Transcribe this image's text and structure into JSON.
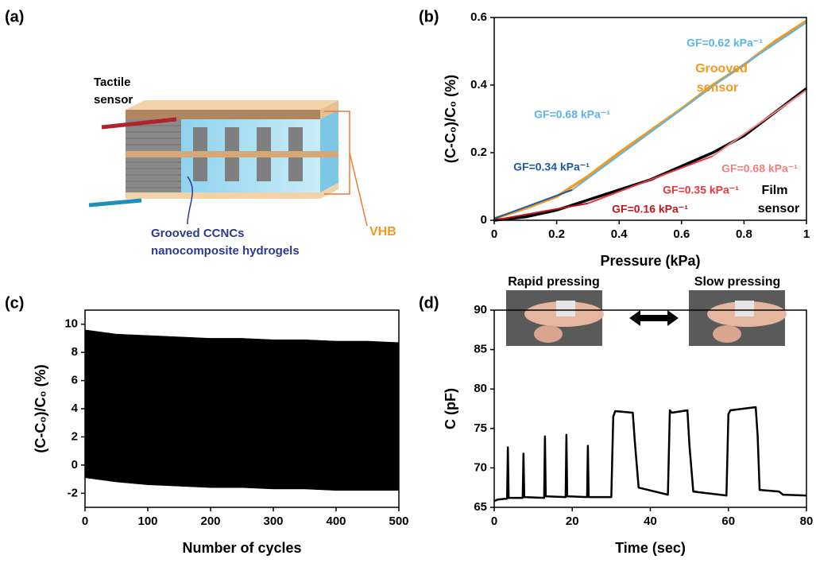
{
  "diagram": {
    "panel_label": "(a)",
    "sensor_label": [
      "Tactile",
      "sensor"
    ],
    "vhb_label": "VHB",
    "hydrogel_label": [
      "Grooved CCNCs",
      "nanocomposite hydrogels"
    ]
  },
  "chart_data": [
    {
      "type": "line",
      "panel_label": "(b)",
      "xlabel": "Pressure (kPa)",
      "ylabel": "(C-C₀)/C₀ (%)",
      "xlim": [
        0,
        1
      ],
      "ylim": [
        0,
        0.6
      ],
      "xticks": [
        0,
        0.2,
        0.4,
        0.6,
        0.8,
        1
      ],
      "yticks": [
        0,
        0.2,
        0.4,
        0.6
      ],
      "x": [
        0,
        0.1,
        0.2,
        0.3,
        0.4,
        0.5,
        0.6,
        0.7,
        0.8,
        0.9,
        1
      ],
      "series": [
        {
          "color": "#f39a1e",
          "values": [
            0.005,
            0.035,
            0.07,
            0.13,
            0.2,
            0.265,
            0.33,
            0.4,
            0.46,
            0.53,
            0.59
          ]
        },
        {
          "color": "#000000",
          "values": [
            0,
            0.01,
            0.03,
            0.06,
            0.09,
            0.12,
            0.16,
            0.2,
            0.25,
            0.32,
            0.39
          ]
        }
      ],
      "fits": [
        {
          "color": "#1a5aa8",
          "x": [
            0,
            0.25
          ],
          "values": [
            0.005,
            0.09
          ]
        },
        {
          "color": "#5bb5e8",
          "x": [
            0.25,
            0.75
          ],
          "values": [
            0.09,
            0.43
          ]
        },
        {
          "color": "#5bb5e8",
          "x": [
            0.75,
            1
          ],
          "values": [
            0.43,
            0.585
          ]
        },
        {
          "color": "#c0151b",
          "x": [
            0,
            0.3
          ],
          "values": [
            0,
            0.05
          ]
        },
        {
          "color": "#e8383a",
          "x": [
            0.3,
            0.7
          ],
          "values": [
            0.05,
            0.19
          ]
        },
        {
          "color": "#f08080",
          "x": [
            0.7,
            1
          ],
          "values": [
            0.19,
            0.385
          ]
        }
      ],
      "annotations": [
        {
          "text": "GF=0.62 kPa⁻¹",
          "color": "#5bb5e8"
        },
        {
          "text": "Grooved",
          "color": "#f39a1e"
        },
        {
          "text": "sensor",
          "color": "#f39a1e"
        },
        {
          "text": "GF=0.68 kPa⁻¹",
          "color": "#5bb5e8"
        },
        {
          "text": "GF=0.34 kPa⁻¹",
          "color": "#1a5aa8"
        },
        {
          "text": "GF=0.68 kPa⁻¹",
          "color": "#f08080"
        },
        {
          "text": "GF=0.35 kPa⁻¹",
          "color": "#e8383a"
        },
        {
          "text": "Film",
          "color": "#000000"
        },
        {
          "text": "sensor",
          "color": "#000000"
        },
        {
          "text": "GF=0.16 kPa⁻¹",
          "color": "#c0151b"
        }
      ]
    },
    {
      "type": "area",
      "panel_label": "(c)",
      "xlabel": "Number of cycles",
      "ylabel": "(C-C₀)/C₀ (%)",
      "xlim": [
        0,
        500
      ],
      "ylim": [
        -3,
        11
      ],
      "xticks": [
        0,
        100,
        200,
        300,
        400,
        500
      ],
      "yticks": [
        -2,
        0,
        2,
        4,
        6,
        8,
        10
      ],
      "x": [
        0,
        50,
        100,
        150,
        200,
        250,
        300,
        350,
        400,
        450,
        500
      ],
      "series": [
        {
          "color": "#000000",
          "values": [
            9.6,
            9.3,
            9.2,
            9.1,
            9.0,
            9.0,
            8.9,
            8.9,
            8.8,
            8.8,
            8.7
          ]
        },
        {
          "color": "#000000",
          "values": [
            -0.9,
            -1.2,
            -1.4,
            -1.5,
            -1.6,
            -1.6,
            -1.7,
            -1.7,
            -1.8,
            -1.8,
            -1.8
          ]
        }
      ]
    },
    {
      "type": "line",
      "panel_label": "(d)",
      "xlabel": "Time (sec)",
      "ylabel": "C (pF)",
      "xlim": [
        0,
        80
      ],
      "ylim": [
        65,
        90
      ],
      "xticks": [
        0,
        20,
        40,
        60,
        80
      ],
      "yticks": [
        65,
        70,
        75,
        80,
        85,
        90
      ],
      "x": [
        0,
        1,
        3.3,
        3.5,
        3.7,
        7.3,
        7.5,
        7.7,
        12.8,
        13,
        13.2,
        18.3,
        18.5,
        18.7,
        23.8,
        24,
        24.2,
        30,
        30.5,
        31,
        35.5,
        36,
        37,
        44.5,
        45,
        45.5,
        49.5,
        50,
        51,
        59.5,
        60,
        60.5,
        67,
        67.5,
        68,
        73,
        74,
        80
      ],
      "series": [
        {
          "color": "#000000",
          "values": [
            65.8,
            66.0,
            66.1,
            72.6,
            66.2,
            66.2,
            71.8,
            66.3,
            66.2,
            74.0,
            66.4,
            66.3,
            74.2,
            66.4,
            66.3,
            72.8,
            66.3,
            66.3,
            76.5,
            77.2,
            77.0,
            73.5,
            67.5,
            66.6,
            77.3,
            77.0,
            77.3,
            73.0,
            67.0,
            66.5,
            76.8,
            77.3,
            77.7,
            74.0,
            67.2,
            67.0,
            66.6,
            66.5
          ]
        }
      ],
      "annotations": [
        {
          "text": "Rapid pressing",
          "color": "#000000"
        },
        {
          "text": "Slow pressing",
          "color": "#000000"
        }
      ]
    }
  ]
}
